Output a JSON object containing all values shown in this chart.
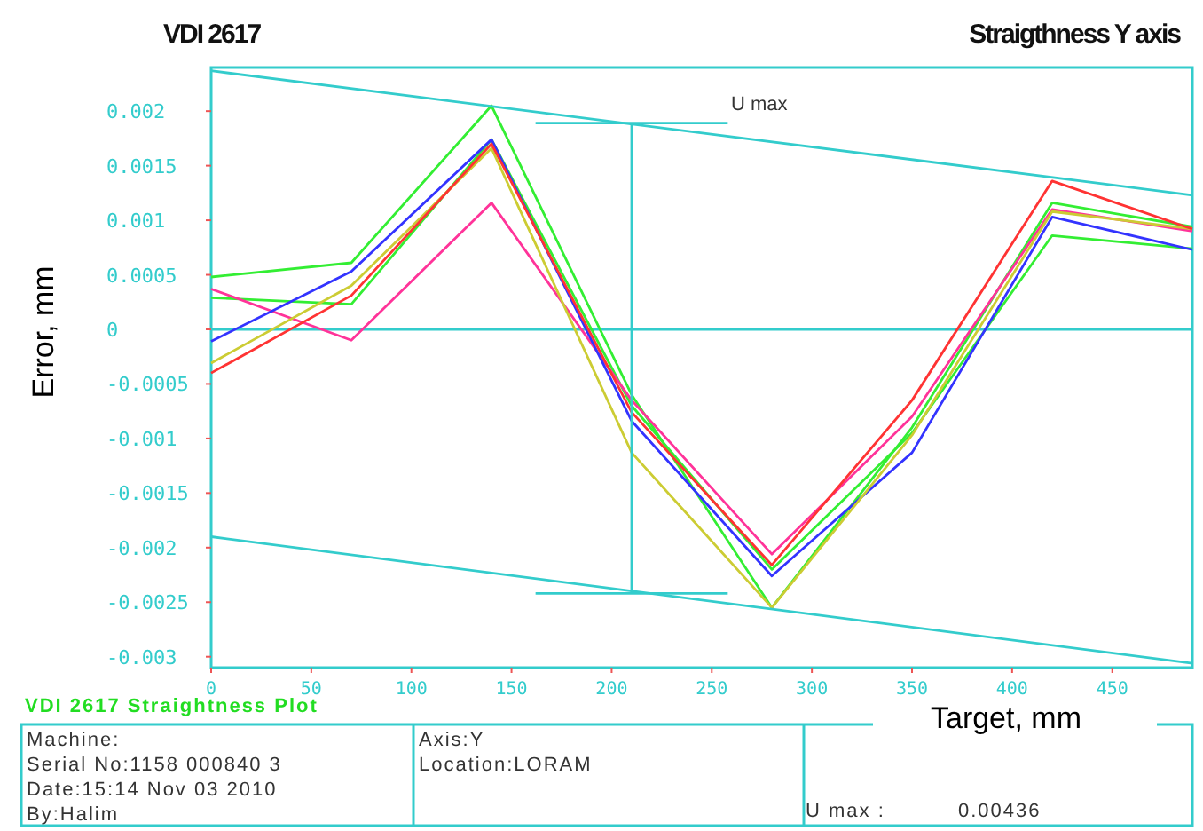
{
  "chart_data": {
    "type": "line",
    "title": "VDI 2617",
    "subtitle": "Straigthness Y axis",
    "xlabel": "Target, mm",
    "ylabel": "Error, mm",
    "x": [
      0,
      70,
      140,
      210,
      280,
      350,
      420,
      490
    ],
    "xlim": [
      0,
      490
    ],
    "xticks": [
      0,
      50,
      100,
      150,
      200,
      250,
      300,
      350,
      400,
      450
    ],
    "ylim": [
      -0.0031,
      0.0024
    ],
    "yticks": [
      0.002,
      0.0015,
      0.001,
      0.0005,
      0,
      -0.0005,
      -0.001,
      -0.0015,
      -0.002,
      -0.0025,
      -0.003
    ],
    "grid": false,
    "marker": "none",
    "line_style": "solid",
    "ref_lines": [
      {
        "axis": "y",
        "value": 0,
        "color": "#33cccc"
      }
    ],
    "series": [
      {
        "color": "#33ee33",
        "values": [
          0.00048,
          0.00061,
          0.00205,
          -0.0006,
          -0.00255,
          -0.0009,
          0.00116,
          0.00094
        ]
      },
      {
        "color": "#33ee33",
        "values": [
          0.00029,
          0.00023,
          0.00174,
          -0.0007,
          -0.0022,
          -0.00095,
          0.00086,
          0.00074
        ]
      },
      {
        "color": "#ff3399",
        "values": [
          0.00037,
          -0.0001,
          0.00116,
          -0.00065,
          -0.00206,
          -0.0008,
          0.0011,
          0.0009
        ]
      },
      {
        "color": "#3333ff",
        "values": [
          -0.00011,
          0.00053,
          0.00174,
          -0.00084,
          -0.00226,
          -0.00113,
          0.00103,
          0.00073
        ]
      },
      {
        "color": "#cccc33",
        "values": [
          -0.00031,
          0.0004,
          0.00166,
          -0.00113,
          -0.00255,
          -0.00097,
          0.00108,
          0.00092
        ]
      },
      {
        "color": "#ff3333",
        "values": [
          -0.0004,
          0.00031,
          0.0017,
          -0.00076,
          -0.00216,
          -0.00065,
          0.00136,
          0.00092
        ]
      },
      {
        "color": "#33cccc",
        "x": [
          0,
          490
        ],
        "values": [
          0.00237,
          0.00123
        ]
      },
      {
        "color": "#33cccc",
        "x": [
          0,
          490
        ],
        "values": [
          -0.0019,
          -0.00306
        ]
      },
      {
        "color": "#33cccc",
        "x": [
          210,
          210
        ],
        "values": [
          0.00189,
          -0.00242
        ]
      },
      {
        "color": "#33cccc",
        "x": [
          162,
          258
        ],
        "values": [
          0.00189,
          0.00189
        ]
      },
      {
        "color": "#33cccc",
        "x": [
          162,
          258
        ],
        "values": [
          -0.00242,
          -0.00242
        ]
      }
    ],
    "annotations": [
      "U max",
      "VDI 2617 Straightness Plot",
      "Machine:",
      "Serial No:1158 000840 3",
      "Date:15:14 Nov 03 2010",
      "By:Halim",
      "Axis:Y",
      "Location:LORAM",
      "U max  :",
      "0.00436"
    ]
  }
}
